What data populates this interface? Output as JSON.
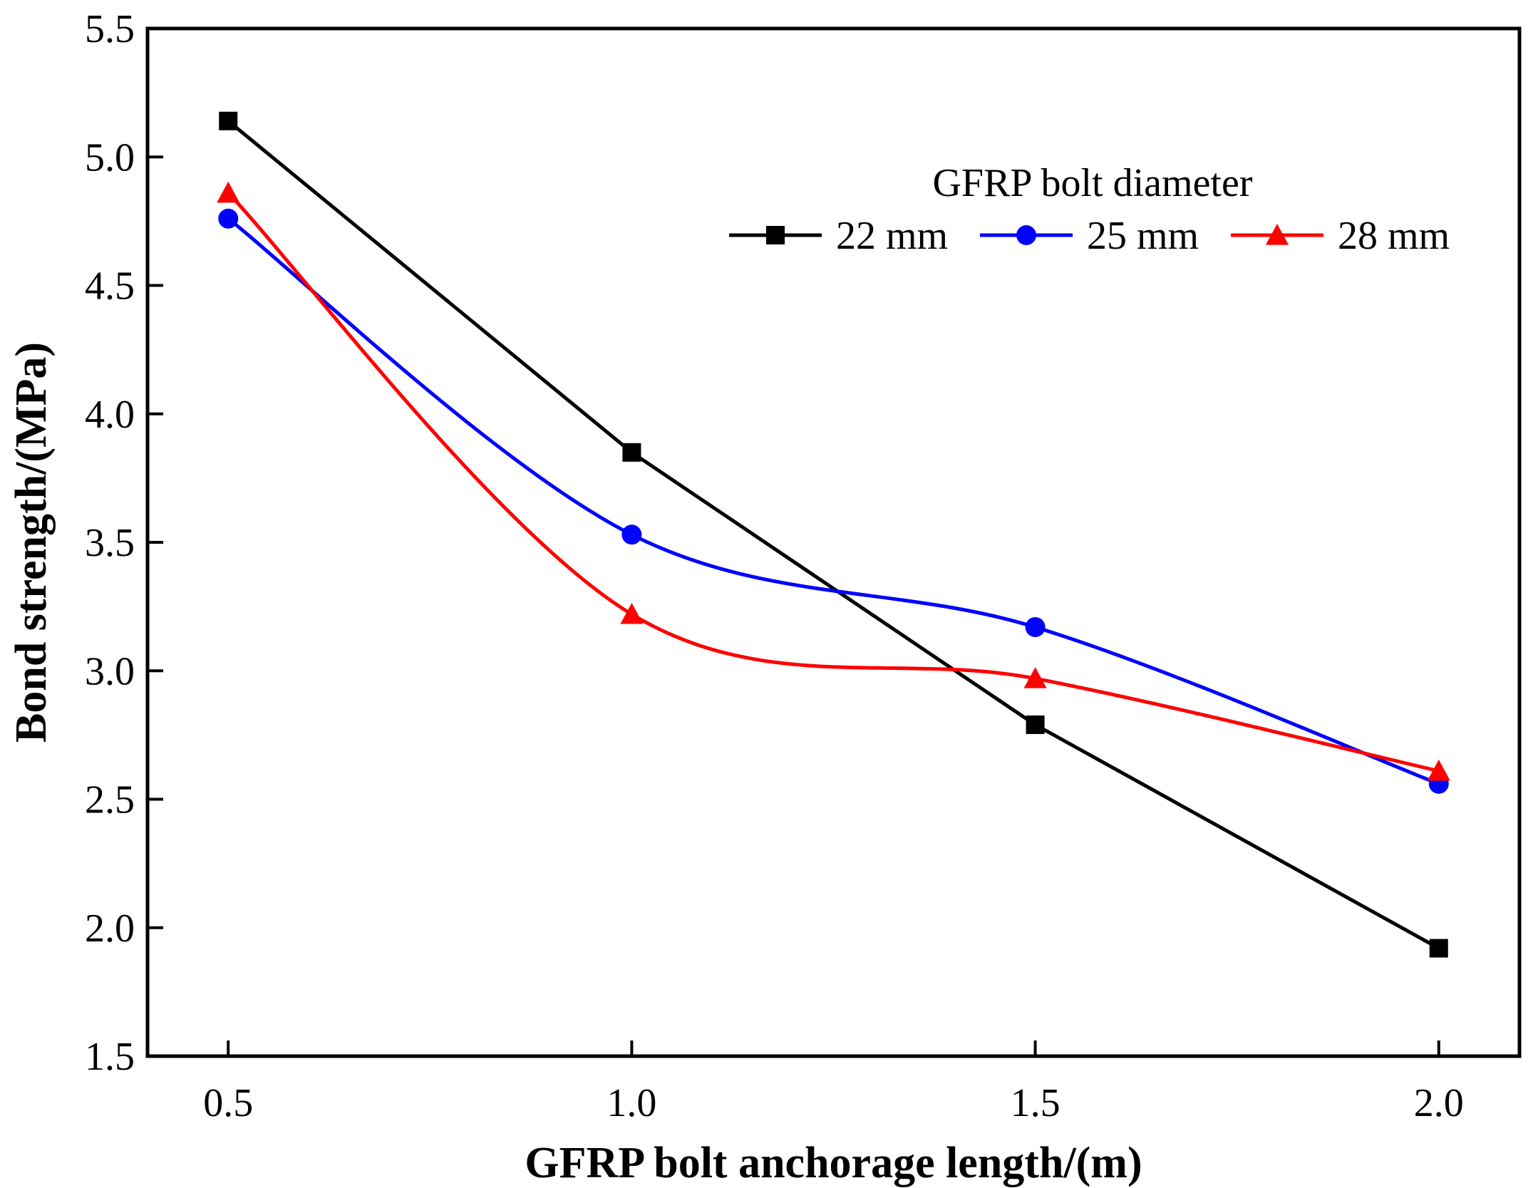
{
  "chart_data": {
    "type": "line",
    "title": "",
    "xlabel": "GFRP bolt anchorage length/(m)",
    "ylabel": "Bond strength/(MPa)",
    "x": [
      0.5,
      1.0,
      1.5,
      2.0
    ],
    "xlim": [
      0.4,
      2.1
    ],
    "ylim": [
      1.5,
      5.5
    ],
    "xticks": [
      "0.5",
      "1.0",
      "1.5",
      "2.0"
    ],
    "yticks": [
      "1.5",
      "2.0",
      "2.5",
      "3.0",
      "3.5",
      "4.0",
      "4.5",
      "5.0",
      "5.5"
    ],
    "grid": false,
    "legend": {
      "title": "GFRP bolt diameter",
      "position": "top-right"
    },
    "series": [
      {
        "name": "22 mm",
        "values": [
          5.14,
          3.85,
          2.79,
          1.92
        ],
        "color": "#000000",
        "marker": "square",
        "curve": "straight"
      },
      {
        "name": "25 mm",
        "values": [
          4.76,
          3.53,
          3.17,
          2.56
        ],
        "color": "#0000ff",
        "marker": "circle",
        "curve": "smooth"
      },
      {
        "name": "28 mm",
        "values": [
          4.86,
          3.22,
          2.97,
          2.61
        ],
        "color": "#ff0000",
        "marker": "triangle",
        "curve": "smooth"
      }
    ]
  }
}
